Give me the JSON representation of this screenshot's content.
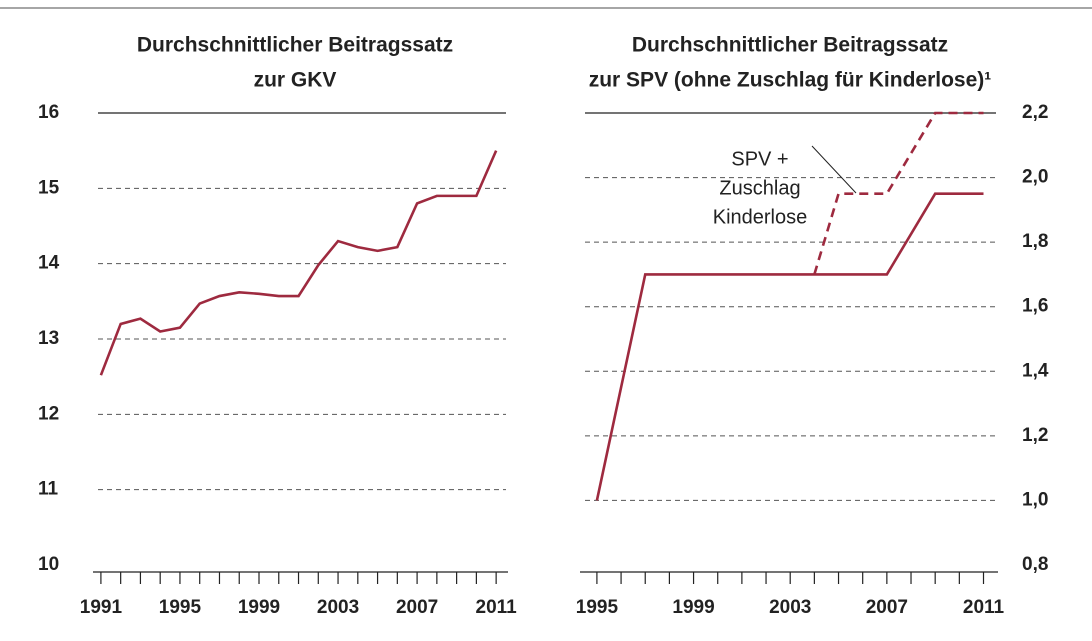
{
  "chart_data": [
    {
      "type": "line",
      "title": [
        "Durchschnittlicher Beitragssatz",
        "zur GKV"
      ],
      "x": [
        1991,
        1992,
        1993,
        1994,
        1995,
        1996,
        1997,
        1998,
        1999,
        2000,
        2001,
        2002,
        2003,
        2004,
        2005,
        2006,
        2007,
        2008,
        2009,
        2010,
        2011
      ],
      "series": [
        {
          "color": "#9e2a3f",
          "style": "solid",
          "values": [
            12.52,
            13.2,
            13.27,
            13.1,
            13.15,
            13.47,
            13.57,
            13.62,
            13.6,
            13.57,
            13.57,
            13.98,
            14.3,
            14.22,
            14.17,
            14.22,
            14.8,
            14.9,
            14.9,
            14.9,
            15.5
          ]
        }
      ],
      "xlim": [
        1990.6,
        2011.6
      ],
      "xticks": [
        1991,
        1995,
        1999,
        2003,
        2007,
        2011
      ],
      "xminor_ticks": [
        1991,
        1992,
        1993,
        1994,
        1995,
        1996,
        1997,
        1998,
        1999,
        2000,
        2001,
        2002,
        2003,
        2004,
        2005,
        2006,
        2007,
        2008,
        2009,
        2010,
        2011
      ],
      "ylim": [
        10,
        16
      ],
      "yticks": [
        10,
        11,
        12,
        13,
        14,
        15,
        16
      ],
      "y_axis_side": "left",
      "grid": true
    },
    {
      "type": "line",
      "title": [
        "Durchschnittlicher Beitragssatz",
        "zur SPV (ohne Zuschlag für Kinderlose)¹"
      ],
      "series": [
        {
          "color": "#9e2a3f",
          "style": "solid",
          "x": [
            1995,
            1997,
            2007,
            2009,
            2011
          ],
          "values": [
            1.0,
            1.7,
            1.7,
            1.95,
            1.95
          ]
        },
        {
          "color": "#9e2a3f",
          "style": "dashed",
          "x": [
            2004,
            2005,
            2007,
            2009,
            2011
          ],
          "values": [
            1.7,
            1.95,
            1.95,
            2.2,
            2.2
          ]
        }
      ],
      "annotation": [
        "SPV +",
        "Zuschlag",
        "Kinderlose"
      ],
      "xlim": [
        1994.3,
        2011.6
      ],
      "xticks": [
        1995,
        1999,
        2003,
        2007,
        2011
      ],
      "xminor_ticks": [
        1995,
        1996,
        1997,
        1998,
        1999,
        2000,
        2001,
        2002,
        2003,
        2004,
        2005,
        2006,
        2007,
        2008,
        2009,
        2010,
        2011
      ],
      "ylim": [
        0.8,
        2.2
      ],
      "yticks": [
        {
          "value": 0.8,
          "label": "0,8"
        },
        {
          "value": 1.0,
          "label": "1,0"
        },
        {
          "value": 1.2,
          "label": "1,2"
        },
        {
          "value": 1.4,
          "label": "1,4"
        },
        {
          "value": 1.6,
          "label": "1,6"
        },
        {
          "value": 1.8,
          "label": "1,8"
        },
        {
          "value": 2.0,
          "label": "2,0"
        },
        {
          "value": 2.2,
          "label": "2,2"
        }
      ],
      "y_axis_side": "right",
      "grid": true
    }
  ]
}
